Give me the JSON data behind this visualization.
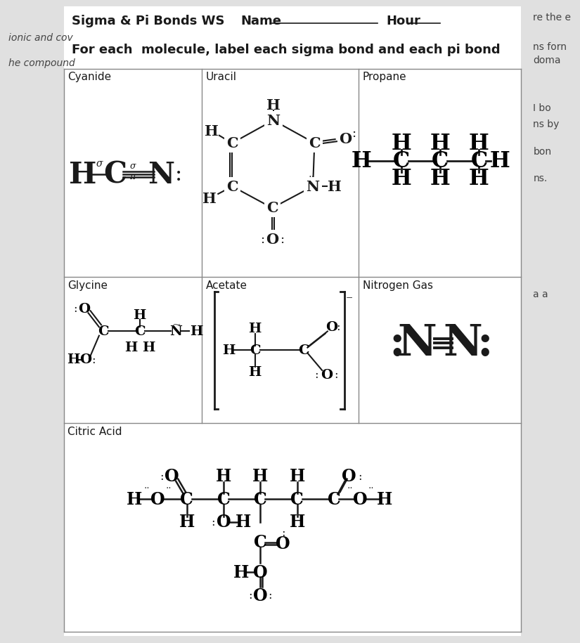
{
  "title": "Sigma & Pi Bonds WS",
  "name_label": "Name",
  "hour_label": "Hour",
  "instruction": "For each  molecule, label each sigma bond and each pi bond",
  "left_text1": "ionic and cov",
  "left_text2": "he compound",
  "right_text1": "re the e",
  "right_text2": "ns forn",
  "right_text3": "doma",
  "right_text4": "I bo",
  "right_text5": "ns by",
  "right_text6": "bon",
  "right_text7": "ns.",
  "right_text8": "a a",
  "bg_color": "#e0e0e0",
  "white": "#ffffff",
  "black": "#1a1a1a",
  "grid_color": "#888888"
}
